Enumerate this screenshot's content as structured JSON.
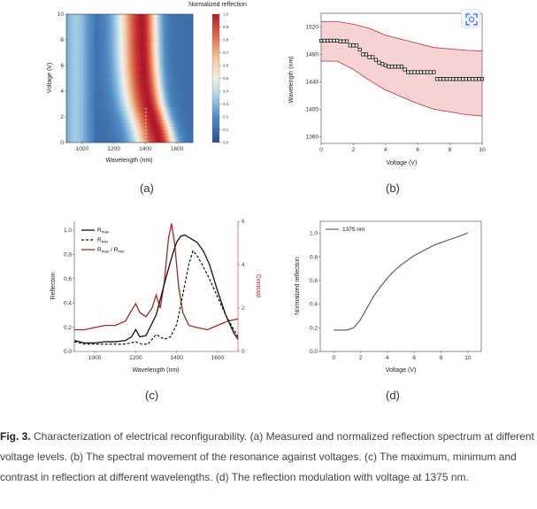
{
  "colors": {
    "heatmap_high": "#b2182b",
    "heatmap_low": "#2c5aa0",
    "band_fill": "#f5c9c9",
    "band_edge": "#b0313a",
    "contrast": "#9e2a25",
    "black": "#111111",
    "gray_curve": "#555555"
  },
  "icons": {
    "expand": "expand-scan-icon"
  },
  "figure": {
    "panel_labels": [
      "(a)",
      "(b)",
      "(c)",
      "(d)"
    ],
    "caption": {
      "label": "Fig. 3.",
      "text": "Characterization of electrical reconfigurability. (a) Measured and normalized reflection spectrum at different voltage levels. (b) The spectral movement of the resonance against voltages. (c) The maximum, minimum and contrast in reflection at different wavelengths. (d) The reflection modulation with voltage at 1375 nm."
    }
  },
  "chart_data": [
    {
      "type": "heatmap",
      "title": "Normalized reflection",
      "xlabel": "Wavelength (nm)",
      "ylabel": "Voltage (V)",
      "xlim": [
        900,
        1700
      ],
      "ylim": [
        0,
        10
      ],
      "xticks": [
        "1000",
        "1200",
        "1400",
        "1600"
      ],
      "yticks": [
        "0",
        "2",
        "4",
        "6",
        "8",
        "10"
      ],
      "colorbar_ticks": [
        "0.0",
        "0.1",
        "0.2",
        "0.3",
        "0.4",
        "0.5",
        "0.6",
        "0.7",
        "0.8",
        "0.9",
        "1.0"
      ],
      "peak_wavelength_vs_voltage": {
        "voltage": [
          0,
          1,
          2,
          3,
          4,
          5,
          6,
          7,
          8,
          9,
          10
        ],
        "wavelength": [
          1490,
          1470,
          1445,
          1420,
          1405,
          1395,
          1388,
          1384,
          1382,
          1380,
          1378
        ]
      }
    },
    {
      "type": "scatter",
      "xlabel": "Voltage (V)",
      "ylabel": "Wavelength (nm)",
      "xlim": [
        0,
        10
      ],
      "ylim": [
        1350,
        1540
      ],
      "xticks": [
        "0",
        "2",
        "4",
        "6",
        "8",
        "10"
      ],
      "yticks": [
        "1360",
        "1400",
        "1440",
        "1480",
        "1520"
      ],
      "series": [
        {
          "role": "points",
          "x": [
            0,
            0.2,
            0.4,
            0.6,
            0.8,
            1.0,
            1.2,
            1.4,
            1.6,
            1.8,
            2.0,
            2.2,
            2.4,
            2.6,
            2.8,
            3.0,
            3.2,
            3.4,
            3.6,
            3.8,
            4.0,
            4.2,
            4.4,
            4.6,
            4.8,
            5.0,
            5.2,
            5.4,
            5.6,
            5.8,
            6.0,
            6.2,
            6.4,
            6.6,
            6.8,
            7.0,
            7.2,
            7.4,
            7.6,
            7.8,
            8.0,
            8.2,
            8.4,
            8.6,
            8.8,
            9.0,
            9.2,
            9.4,
            9.6,
            9.8,
            10.0
          ],
          "y": [
            1500,
            1500,
            1500,
            1500,
            1500,
            1500,
            1499,
            1499,
            1499,
            1493,
            1493,
            1493,
            1487,
            1480,
            1480,
            1476,
            1476,
            1472,
            1468,
            1466,
            1464,
            1462,
            1462,
            1462,
            1462,
            1462,
            1458,
            1454,
            1454,
            1454,
            1454,
            1454,
            1454,
            1454,
            1454,
            1454,
            1444,
            1444,
            1444,
            1444,
            1444,
            1444,
            1444,
            1444,
            1444,
            1444,
            1444,
            1444,
            1444,
            1444,
            1444
          ]
        },
        {
          "role": "band_upper",
          "x": [
            0,
            1,
            2,
            3,
            4,
            5,
            6,
            7,
            8,
            9,
            10
          ],
          "y": [
            1528,
            1528,
            1524,
            1518,
            1508,
            1502,
            1496,
            1490,
            1488,
            1486,
            1485
          ]
        },
        {
          "role": "band_lower",
          "x": [
            0,
            1,
            2,
            3,
            4,
            5,
            6,
            7,
            8,
            9,
            10
          ],
          "y": [
            1470,
            1470,
            1458,
            1442,
            1428,
            1418,
            1408,
            1400,
            1396,
            1392,
            1390
          ]
        }
      ]
    },
    {
      "type": "line",
      "xlabel": "Wavelength (nm)",
      "ylabel": "Reflection",
      "y2label": "Contrast",
      "xlim": [
        900,
        1700
      ],
      "ylim": [
        0,
        1.0
      ],
      "y2lim": [
        0,
        6
      ],
      "xticks": [
        "1000",
        "1200",
        "1400",
        "1600"
      ],
      "yticks": [
        "0.0",
        "0.2",
        "0.4",
        "0.6",
        "0.8",
        "1.0"
      ],
      "y2ticks": [
        "0",
        "2",
        "4",
        "6"
      ],
      "legend": {
        "placement": "top-left"
      },
      "series": [
        {
          "name_main": "R",
          "name_sub": "max",
          "axis": "left",
          "style": "solid",
          "x": [
            900,
            950,
            1000,
            1050,
            1100,
            1150,
            1180,
            1200,
            1220,
            1250,
            1300,
            1350,
            1380,
            1400,
            1420,
            1440,
            1460,
            1480,
            1500,
            1530,
            1560,
            1600,
            1640,
            1680,
            1700
          ],
          "y": [
            0.09,
            0.07,
            0.07,
            0.08,
            0.08,
            0.09,
            0.12,
            0.18,
            0.12,
            0.13,
            0.3,
            0.62,
            0.8,
            0.9,
            0.95,
            0.96,
            0.94,
            0.92,
            0.9,
            0.83,
            0.72,
            0.5,
            0.3,
            0.15,
            0.1
          ]
        },
        {
          "name_main": "R",
          "name_sub": "min",
          "axis": "left",
          "style": "dashed",
          "x": [
            900,
            950,
            1000,
            1050,
            1100,
            1150,
            1200,
            1230,
            1260,
            1300,
            1340,
            1370,
            1400,
            1420,
            1440,
            1460,
            1480,
            1500,
            1530,
            1560,
            1600,
            1640,
            1680,
            1700
          ],
          "y": [
            0.08,
            0.06,
            0.06,
            0.06,
            0.06,
            0.06,
            0.08,
            0.06,
            0.06,
            0.14,
            0.1,
            0.12,
            0.22,
            0.38,
            0.55,
            0.72,
            0.83,
            0.79,
            0.7,
            0.6,
            0.45,
            0.3,
            0.18,
            0.12
          ]
        },
        {
          "name_main": "R",
          "name_sub": "max",
          "name_sep": " / ",
          "name_main2": "R",
          "name_sub2": "min",
          "axis": "right",
          "style": "solid",
          "x": [
            900,
            950,
            1000,
            1050,
            1100,
            1150,
            1180,
            1200,
            1220,
            1250,
            1280,
            1300,
            1320,
            1340,
            1360,
            1375,
            1390,
            1410,
            1430,
            1460,
            1500,
            1550,
            1600,
            1650,
            1700
          ],
          "y": [
            1.0,
            1.0,
            1.1,
            1.2,
            1.2,
            1.4,
            1.9,
            2.2,
            1.8,
            1.6,
            2.0,
            2.6,
            2.0,
            3.2,
            5.2,
            5.9,
            5.0,
            3.0,
            1.8,
            1.2,
            1.1,
            1.0,
            1.2,
            1.4,
            1.5
          ]
        }
      ]
    },
    {
      "type": "line",
      "xlabel": "Voltage (V)",
      "ylabel": "Normalized reflection",
      "xlim": [
        -1,
        11
      ],
      "ylim": [
        0,
        1.1
      ],
      "xticks": [
        "0",
        "2",
        "4",
        "6",
        "8",
        "10"
      ],
      "yticks": [
        "0.0",
        "0.2",
        "0.4",
        "0.6",
        "0.8",
        "1.0"
      ],
      "legend": {
        "placement": "top-left"
      },
      "series": [
        {
          "name": "1375 nm",
          "x": [
            0,
            0.5,
            1.0,
            1.5,
            2.0,
            2.5,
            3.0,
            3.5,
            4.0,
            4.5,
            5.0,
            5.5,
            6.0,
            6.5,
            7.0,
            7.5,
            8.0,
            8.5,
            9.0,
            9.5,
            10.0
          ],
          "y": [
            0.18,
            0.18,
            0.18,
            0.2,
            0.27,
            0.37,
            0.47,
            0.55,
            0.62,
            0.68,
            0.73,
            0.77,
            0.81,
            0.84,
            0.87,
            0.9,
            0.92,
            0.94,
            0.96,
            0.98,
            1.0
          ]
        }
      ]
    }
  ]
}
